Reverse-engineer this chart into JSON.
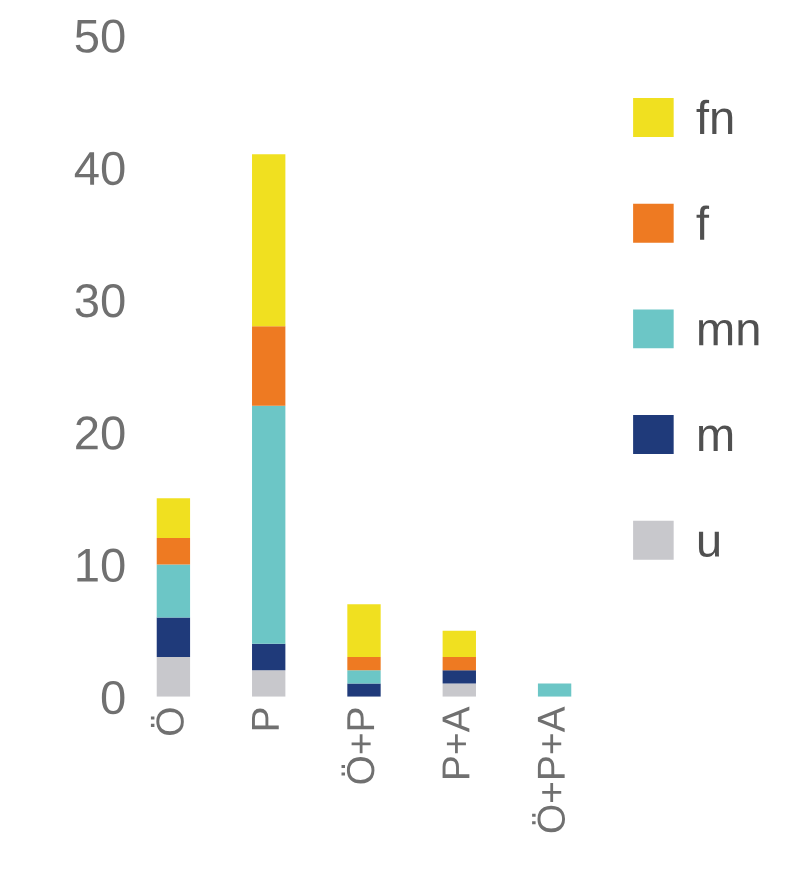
{
  "chart_data": {
    "type": "bar",
    "stacked": true,
    "categories": [
      "Ö",
      "P",
      "Ö+P",
      "P+A",
      "Ö+P+A"
    ],
    "series": [
      {
        "name": "u",
        "color": "#c8c8cc",
        "values": [
          3,
          2,
          0,
          1,
          0
        ]
      },
      {
        "name": "m",
        "color": "#1f3a7a",
        "values": [
          3,
          2,
          1,
          1,
          0
        ]
      },
      {
        "name": "mn",
        "color": "#6cc6c6",
        "values": [
          4,
          18,
          1,
          0,
          1
        ]
      },
      {
        "name": "f",
        "color": "#ee7a22",
        "values": [
          2,
          6,
          1,
          1,
          0
        ]
      },
      {
        "name": "fn",
        "color": "#f0e020",
        "values": [
          3,
          13,
          4,
          2,
          0
        ]
      }
    ],
    "ylim": [
      0,
      50
    ],
    "yticks": [
      0,
      10,
      20,
      30,
      40,
      50
    ],
    "grid": false,
    "legend": "right"
  }
}
